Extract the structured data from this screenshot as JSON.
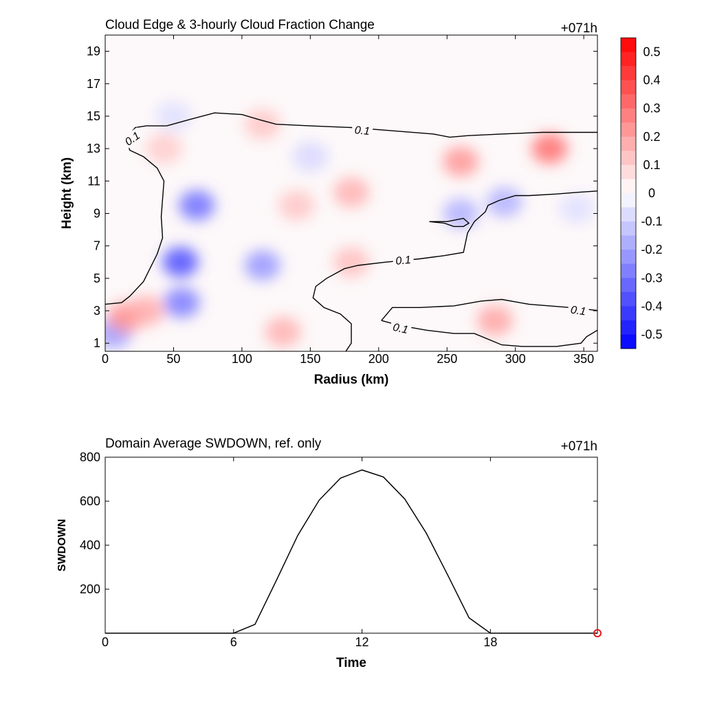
{
  "chart_data": [
    {
      "type": "heatmap",
      "title": "Cloud Edge & 3-hourly Cloud Fraction Change",
      "time_label": "+071h",
      "xlabel": "Radius (km)",
      "ylabel": "Height (km)",
      "xlim": [
        0,
        360
      ],
      "ylim": [
        0.5,
        20
      ],
      "xticks": [
        0,
        50,
        100,
        150,
        200,
        250,
        300,
        350
      ],
      "yticks": [
        1,
        3,
        5,
        7,
        9,
        11,
        13,
        15,
        17,
        19
      ],
      "contour_level": "0.1",
      "contour_label_text": "0.1",
      "colorbar": {
        "range": [
          -0.55,
          0.55
        ],
        "step": 0.05,
        "labels": [
          "0.5",
          "0.4",
          "0.3",
          "0.2",
          "0.1",
          "0",
          "-0.1",
          "-0.2",
          "-0.3",
          "-0.4",
          "-0.5"
        ],
        "label_values": [
          0.5,
          0.4,
          0.3,
          0.2,
          0.1,
          0,
          -0.1,
          -0.2,
          -0.3,
          -0.4,
          -0.5
        ],
        "colors": {
          "negative": "#0000ff",
          "zero": "#ffffff",
          "positive": "#ff0000"
        }
      },
      "anomalies": [
        {
          "x": 55,
          "y": 6.0,
          "value": -0.27
        },
        {
          "x": 67,
          "y": 9.5,
          "value": -0.22
        },
        {
          "x": 56,
          "y": 3.5,
          "value": -0.2
        },
        {
          "x": 115,
          "y": 5.8,
          "value": -0.16
        },
        {
          "x": 6,
          "y": 1.6,
          "value": -0.15
        },
        {
          "x": 260,
          "y": 9.0,
          "value": -0.12
        },
        {
          "x": 292,
          "y": 9.7,
          "value": -0.12
        },
        {
          "x": 150,
          "y": 12.5,
          "value": -0.06
        },
        {
          "x": 50,
          "y": 15.0,
          "value": -0.05
        },
        {
          "x": 345,
          "y": 9.3,
          "value": -0.05
        },
        {
          "x": 15,
          "y": 2.6,
          "value": 0.17
        },
        {
          "x": 30,
          "y": 3.0,
          "value": 0.13
        },
        {
          "x": 325,
          "y": 13.0,
          "value": 0.22
        },
        {
          "x": 260,
          "y": 12.2,
          "value": 0.16
        },
        {
          "x": 285,
          "y": 2.4,
          "value": 0.14
        },
        {
          "x": 180,
          "y": 10.3,
          "value": 0.12
        },
        {
          "x": 130,
          "y": 1.7,
          "value": 0.12
        },
        {
          "x": 180,
          "y": 6.0,
          "value": 0.1
        },
        {
          "x": 140,
          "y": 9.5,
          "value": 0.09
        },
        {
          "x": 115,
          "y": 14.5,
          "value": 0.09
        },
        {
          "x": 43,
          "y": 13.0,
          "value": 0.08
        }
      ],
      "contours": [
        {
          "points": [
            [
              0,
              3.4
            ],
            [
              12,
              3.5
            ],
            [
              18,
              3.9
            ],
            [
              28,
              4.8
            ],
            [
              38,
              6.5
            ],
            [
              42,
              7.5
            ],
            [
              41,
              8.8
            ],
            [
              43,
              11.0
            ],
            [
              38,
              11.8
            ],
            [
              28,
              12.5
            ],
            [
              18,
              12.9
            ],
            [
              15,
              13.6
            ],
            [
              22,
              14.3
            ],
            [
              30,
              14.4
            ],
            [
              45,
              14.4
            ],
            [
              62,
              14.8
            ],
            [
              80,
              15.2
            ],
            [
              100,
              15.1
            ],
            [
              112,
              14.8
            ],
            [
              125,
              14.5
            ],
            [
              150,
              14.4
            ],
            [
              180,
              14.3
            ],
            [
              210,
              14.1
            ],
            [
              240,
              13.9
            ],
            [
              252,
              13.7
            ],
            [
              265,
              13.8
            ],
            [
              290,
              13.9
            ],
            [
              320,
              14.0
            ],
            [
              362,
              14.0
            ]
          ],
          "labels": [
            {
              "x": 20,
              "y": 13.6,
              "angle": -35
            },
            {
              "x": 188,
              "y": 14.1,
              "angle": 5
            }
          ]
        },
        {
          "points": [
            [
              362,
              10.4
            ],
            [
              345,
              10.3
            ],
            [
              330,
              10.2
            ],
            [
              310,
              10.1
            ],
            [
              300,
              10.1
            ],
            [
              288,
              9.8
            ],
            [
              280,
              9.5
            ],
            [
              278,
              9.1
            ],
            [
              270,
              8.5
            ],
            [
              265,
              7.8
            ],
            [
              262,
              6.6
            ],
            [
              248,
              6.4
            ],
            [
              230,
              6.2
            ],
            [
              205,
              6.0
            ],
            [
              185,
              5.8
            ],
            [
              175,
              5.6
            ],
            [
              162,
              5.0
            ],
            [
              154,
              4.5
            ],
            [
              152,
              3.8
            ],
            [
              160,
              3.2
            ],
            [
              172,
              2.8
            ],
            [
              180,
              2.2
            ],
            [
              180,
              1.0
            ],
            [
              176,
              0.5
            ]
          ],
          "labels": [
            {
              "x": 218,
              "y": 6.1,
              "angle": -5
            }
          ]
        },
        {
          "points": [
            [
              237,
              8.5
            ],
            [
              250,
              8.5
            ],
            [
              262,
              8.7
            ],
            [
              266,
              8.4
            ],
            [
              262,
              8.2
            ],
            [
              255,
              8.2
            ],
            [
              248,
              8.4
            ],
            [
              237,
              8.5
            ]
          ],
          "labels": []
        },
        {
          "points": [
            [
              202,
              2.4
            ],
            [
              210,
              3.2
            ],
            [
              230,
              3.2
            ],
            [
              255,
              3.3
            ],
            [
              275,
              3.6
            ],
            [
              290,
              3.7
            ],
            [
              310,
              3.4
            ],
            [
              340,
              3.2
            ],
            [
              362,
              3.0
            ]
          ],
          "labels": [
            {
              "x": 346,
              "y": 3.0,
              "angle": 8
            }
          ]
        },
        {
          "points": [
            [
              202,
              2.4
            ],
            [
              215,
              2.1
            ],
            [
              235,
              1.8
            ],
            [
              255,
              1.6
            ],
            [
              270,
              1.6
            ],
            [
              290,
              0.9
            ],
            [
              305,
              0.8
            ],
            [
              330,
              0.8
            ],
            [
              348,
              1.0
            ],
            [
              352,
              1.4
            ],
            [
              362,
              1.9
            ]
          ],
          "labels": [
            {
              "x": 216,
              "y": 1.9,
              "angle": 12
            }
          ]
        }
      ]
    },
    {
      "type": "line",
      "title": "Domain Average SWDOWN, ref. only",
      "time_label": "+071h",
      "xlabel": "Time",
      "ylabel": "SWDOWN",
      "xlim": [
        0,
        23
      ],
      "ylim": [
        0,
        800
      ],
      "xticks": [
        0,
        6,
        12,
        18
      ],
      "yticks": [
        200,
        400,
        600,
        800
      ],
      "x": [
        0,
        1,
        2,
        3,
        4,
        5,
        6,
        7,
        8,
        9,
        10,
        11,
        12,
        13,
        14,
        15,
        16,
        17,
        18,
        19,
        20,
        21,
        22,
        23
      ],
      "values": [
        0,
        0,
        0,
        0,
        0,
        0,
        0,
        40,
        240,
        445,
        605,
        705,
        742,
        710,
        610,
        455,
        265,
        70,
        0,
        0,
        0,
        0,
        0,
        0
      ],
      "marker": {
        "x": 23,
        "y": 0,
        "color": "#e41a1c"
      }
    }
  ]
}
